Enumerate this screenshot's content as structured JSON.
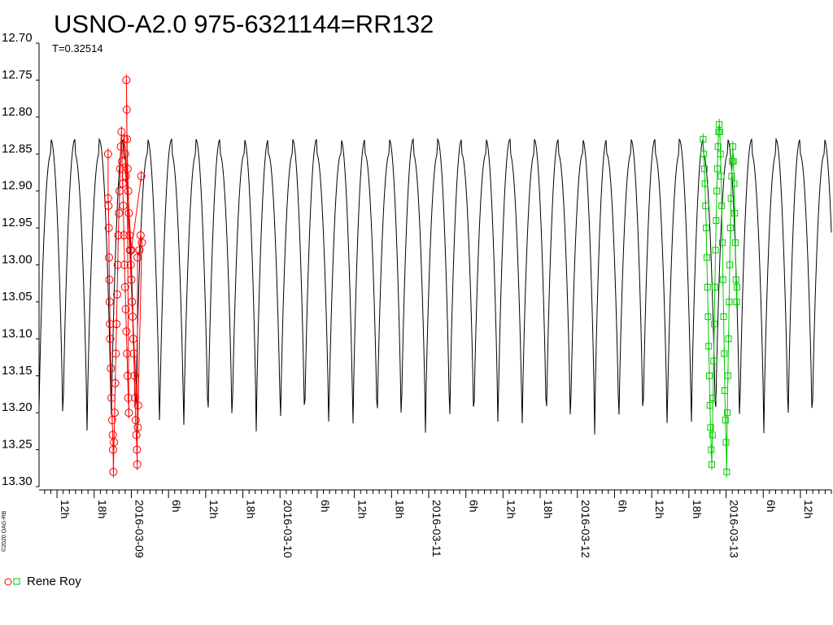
{
  "header": {
    "title": "USNO-A2.0 975-6321144=RR132",
    "period_text": "T=0.32514"
  },
  "copyright": "©2020 OAG-RB",
  "legend": {
    "observers": [
      {
        "label": "Rene Roy",
        "color": "#ff0000",
        "alt_color": "#00cc00"
      }
    ]
  },
  "chart_data": {
    "type": "scatter",
    "title": "USNO-A2.0 975-6321144=RR132",
    "subtitle": "T=0.32514",
    "y_inverted": true,
    "ylim": [
      12.7,
      13.3
    ],
    "y_ticks": [
      "12.70",
      "12.75",
      "12.80",
      "12.85",
      "12.90",
      "12.95",
      "13.00",
      "13.05",
      "13.10",
      "13.15",
      "13.20",
      "13.25",
      "13.30"
    ],
    "x_unit": "hours since 2016-03-08 00:00",
    "xlim": [
      9.1,
      137.0
    ],
    "x_ticks": [
      {
        "x": 12,
        "label": "12h"
      },
      {
        "x": 18,
        "label": "18h"
      },
      {
        "x": 24,
        "label": "2016-03-09"
      },
      {
        "x": 30,
        "label": "6h"
      },
      {
        "x": 36,
        "label": "12h"
      },
      {
        "x": 42,
        "label": "18h"
      },
      {
        "x": 48,
        "label": "2016-03-10"
      },
      {
        "x": 54,
        "label": "6h"
      },
      {
        "x": 60,
        "label": "12h"
      },
      {
        "x": 66,
        "label": "18h"
      },
      {
        "x": 72,
        "label": "2016-03-11"
      },
      {
        "x": 78,
        "label": "6h"
      },
      {
        "x": 84,
        "label": "12h"
      },
      {
        "x": 90,
        "label": "18h"
      },
      {
        "x": 96,
        "label": "2016-03-12"
      },
      {
        "x": 102,
        "label": "6h"
      },
      {
        "x": 108,
        "label": "12h"
      },
      {
        "x": 114,
        "label": "18h"
      },
      {
        "x": 120,
        "label": "2016-03-13"
      },
      {
        "x": 126,
        "label": "6h"
      },
      {
        "x": 132,
        "label": "12h"
      }
    ],
    "model": {
      "name": "light curve model",
      "period_days": 0.32514,
      "max_mags": [
        12.83,
        12.85
      ],
      "min_mag": 13.23,
      "first_peak_x": 11.0,
      "color": "#000000"
    },
    "series": [
      {
        "name": "Rene Roy",
        "marker": "circle",
        "color": "#ff0000",
        "points": [
          [
            20.25,
            12.85
          ],
          [
            20.25,
            12.91
          ],
          [
            20.3,
            12.92
          ],
          [
            20.35,
            12.95
          ],
          [
            20.4,
            12.99
          ],
          [
            20.45,
            13.02
          ],
          [
            20.5,
            13.05
          ],
          [
            20.55,
            13.08
          ],
          [
            20.6,
            13.1
          ],
          [
            20.7,
            13.14
          ],
          [
            20.8,
            13.18
          ],
          [
            20.9,
            13.21
          ],
          [
            21.0,
            13.23
          ],
          [
            21.05,
            13.25
          ],
          [
            21.1,
            13.28
          ],
          [
            21.2,
            13.24
          ],
          [
            21.3,
            13.2
          ],
          [
            21.4,
            13.16
          ],
          [
            21.5,
            13.12
          ],
          [
            21.6,
            13.08
          ],
          [
            21.7,
            13.04
          ],
          [
            21.8,
            13.0
          ],
          [
            21.9,
            12.96
          ],
          [
            22.0,
            12.93
          ],
          [
            22.1,
            12.9
          ],
          [
            22.2,
            12.87
          ],
          [
            22.3,
            12.84
          ],
          [
            22.4,
            12.82
          ],
          [
            22.5,
            12.86
          ],
          [
            22.6,
            12.89
          ],
          [
            22.7,
            12.92
          ],
          [
            22.8,
            12.96
          ],
          [
            22.9,
            13.0
          ],
          [
            23.0,
            13.03
          ],
          [
            23.1,
            13.06
          ],
          [
            23.2,
            13.09
          ],
          [
            23.3,
            13.12
          ],
          [
            23.4,
            13.15
          ],
          [
            23.5,
            13.18
          ],
          [
            23.6,
            13.2
          ],
          [
            23.2,
            12.75
          ],
          [
            23.25,
            12.79
          ],
          [
            23.3,
            12.83
          ],
          [
            23.4,
            12.87
          ],
          [
            23.5,
            12.9
          ],
          [
            23.6,
            12.93
          ],
          [
            23.7,
            12.96
          ],
          [
            23.8,
            12.98
          ],
          [
            23.9,
            13.0
          ],
          [
            24.0,
            13.02
          ],
          [
            24.1,
            13.05
          ],
          [
            24.2,
            13.07
          ],
          [
            24.3,
            13.1
          ],
          [
            24.4,
            13.12
          ],
          [
            24.5,
            13.15
          ],
          [
            24.6,
            13.18
          ],
          [
            24.7,
            13.21
          ],
          [
            24.8,
            13.23
          ],
          [
            24.9,
            13.25
          ],
          [
            24.95,
            13.27
          ],
          [
            25.0,
            12.99
          ],
          [
            25.3,
            12.98
          ],
          [
            25.5,
            12.96
          ],
          [
            25.7,
            12.97
          ],
          [
            25.1,
            13.19
          ],
          [
            25.05,
            13.22
          ],
          [
            23.0,
            12.85
          ],
          [
            23.1,
            12.88
          ],
          [
            22.9,
            12.83
          ],
          [
            24.0,
            12.98
          ],
          [
            25.6,
            12.88
          ]
        ]
      },
      {
        "name": "Rene Roy",
        "marker": "square",
        "color": "#00cc00",
        "points": [
          [
            116.3,
            12.83
          ],
          [
            116.4,
            12.85
          ],
          [
            116.5,
            12.87
          ],
          [
            116.6,
            12.89
          ],
          [
            116.7,
            12.92
          ],
          [
            116.8,
            12.95
          ],
          [
            116.9,
            12.99
          ],
          [
            117.0,
            13.03
          ],
          [
            117.1,
            13.07
          ],
          [
            117.2,
            13.11
          ],
          [
            117.3,
            13.15
          ],
          [
            117.4,
            13.19
          ],
          [
            117.5,
            13.22
          ],
          [
            117.6,
            13.25
          ],
          [
            117.7,
            13.27
          ],
          [
            117.8,
            13.23
          ],
          [
            117.9,
            13.18
          ],
          [
            118.0,
            13.13
          ],
          [
            118.1,
            13.08
          ],
          [
            118.2,
            13.03
          ],
          [
            118.3,
            12.98
          ],
          [
            118.4,
            12.94
          ],
          [
            118.5,
            12.9
          ],
          [
            118.6,
            12.87
          ],
          [
            118.7,
            12.84
          ],
          [
            118.8,
            12.82
          ],
          [
            118.9,
            12.81
          ],
          [
            119.0,
            12.82
          ],
          [
            119.1,
            12.85
          ],
          [
            119.2,
            12.88
          ],
          [
            119.3,
            12.92
          ],
          [
            119.4,
            12.97
          ],
          [
            119.5,
            13.02
          ],
          [
            119.6,
            13.07
          ],
          [
            119.7,
            13.12
          ],
          [
            119.8,
            13.17
          ],
          [
            119.9,
            13.21
          ],
          [
            120.0,
            13.24
          ],
          [
            120.1,
            13.28
          ],
          [
            120.2,
            13.2
          ],
          [
            120.3,
            13.15
          ],
          [
            120.4,
            13.1
          ],
          [
            120.5,
            13.05
          ],
          [
            120.6,
            13.0
          ],
          [
            120.7,
            12.95
          ],
          [
            120.8,
            12.91
          ],
          [
            120.9,
            12.88
          ],
          [
            121.0,
            12.86
          ],
          [
            121.1,
            12.84
          ],
          [
            121.2,
            12.86
          ],
          [
            121.3,
            12.89
          ],
          [
            121.4,
            12.93
          ],
          [
            121.5,
            12.97
          ],
          [
            121.6,
            13.02
          ],
          [
            121.7,
            13.05
          ],
          [
            121.75,
            13.03
          ]
        ]
      }
    ]
  }
}
